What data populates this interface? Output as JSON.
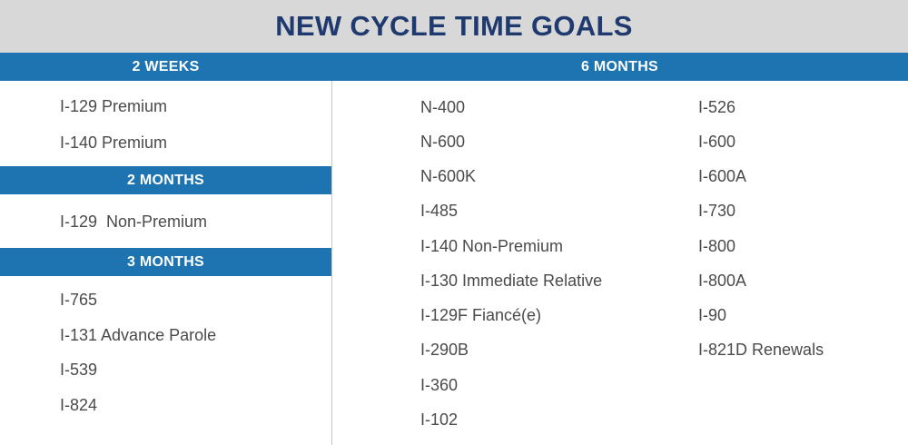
{
  "title": "NEW CYCLE TIME GOALS",
  "sections": {
    "two_weeks": {
      "label": "2 WEEKS",
      "items": [
        "I-129 Premium",
        "I-140 Premium"
      ]
    },
    "two_months": {
      "label": "2 MONTHS",
      "items": [
        "I-129  Non-Premium"
      ]
    },
    "three_months": {
      "label": "3 MONTHS",
      "items": [
        "I-765",
        "I-131 Advance Parole",
        "I-539",
        "I-824"
      ]
    },
    "six_months": {
      "label": "6 MONTHS",
      "col1": [
        "N-400",
        "N-600",
        "N-600K",
        "I-485",
        "I-140 Non-Premium",
        "I-130 Immediate Relative",
        "I-129F Fiancé(e)",
        "I-290B",
        "I-360",
        "I-102"
      ],
      "col2": [
        "I-526",
        "I-600",
        "I-600A",
        "I-730",
        "I-800",
        "I-800A",
        "I-90",
        "I-821D Renewals"
      ]
    }
  },
  "colors": {
    "title_bg": "#d8d8d8",
    "title_text": "#1e3a6e",
    "band": "#1d74b0",
    "text": "#4a4a4a"
  }
}
